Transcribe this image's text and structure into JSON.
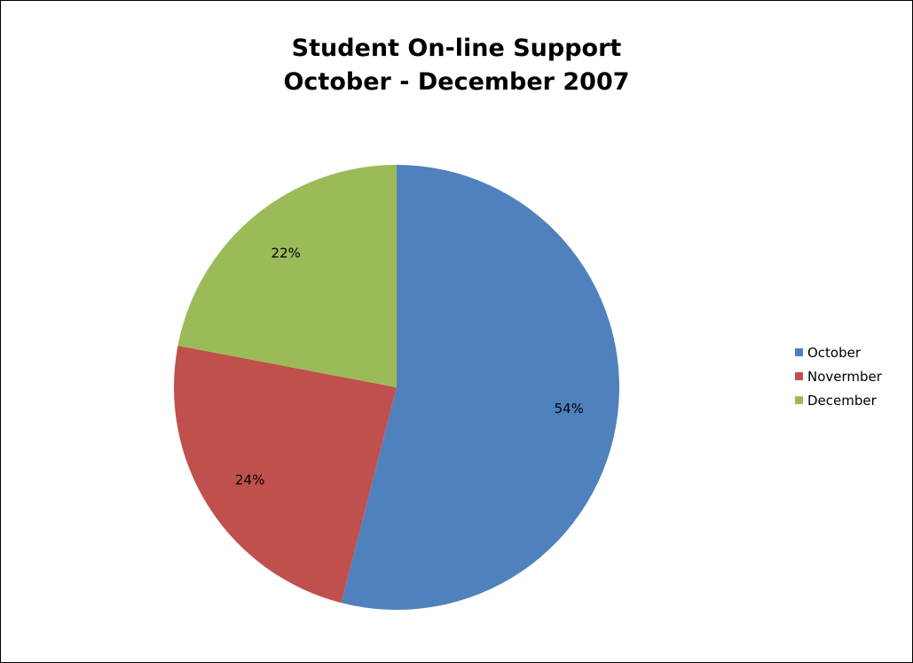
{
  "chart_data": {
    "type": "pie",
    "title": [
      "Student On-line Support",
      "October - December 2007"
    ],
    "categories": [
      "October",
      "Novermber",
      "December"
    ],
    "values": [
      54,
      24,
      22
    ],
    "data_labels": [
      "54%",
      "24%",
      "22%"
    ],
    "colors": [
      "#4f81bd",
      "#c0504d",
      "#9bbb59"
    ],
    "start_angle_deg": 0,
    "direction": "clockwise",
    "legend_position": "right"
  }
}
